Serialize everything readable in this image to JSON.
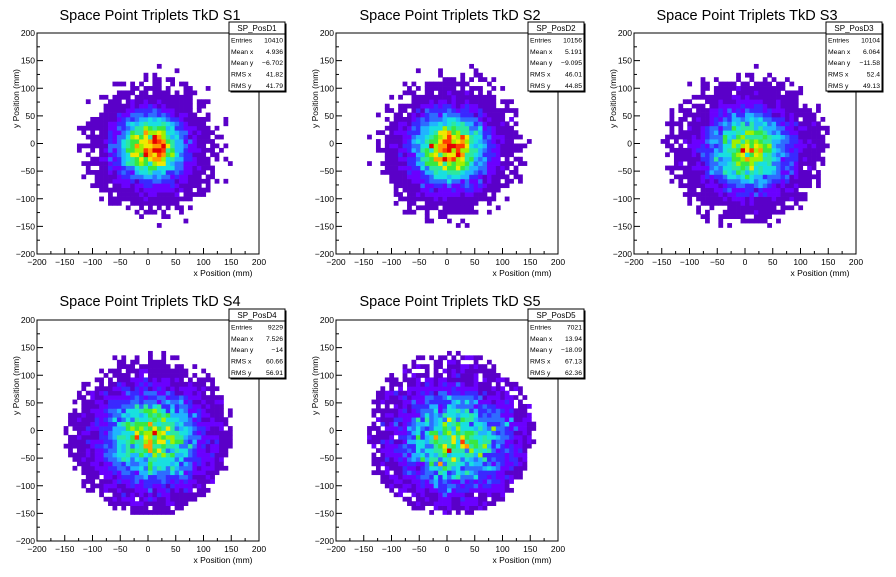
{
  "page": {
    "background": "#ffffff",
    "frame_color": "#000000"
  },
  "chart_data": [
    {
      "type": "heatmap",
      "title": "Space Point Triplets TkD S1",
      "xlabel": "x Position (mm)",
      "ylabel": "y Position (mm)",
      "xlim": [
        -200,
        200
      ],
      "ylim": [
        -200,
        200
      ],
      "xticks": [
        "−200",
        "−150",
        "−100",
        "−50",
        "0",
        "50",
        "100",
        "150",
        "200"
      ],
      "yticks": [
        "200",
        "150",
        "100",
        "50",
        "0",
        "−50",
        "−100",
        "−150",
        "−200"
      ],
      "bin_width": 8,
      "stats": {
        "name": "SP_PosD1",
        "rows": [
          {
            "label": "Entries",
            "value": "10410"
          },
          {
            "label": "Mean x",
            "value": "4.936"
          },
          {
            "label": "Mean y",
            "value": "−6.702"
          },
          {
            "label": "RMS x",
            "value": "41.82"
          },
          {
            "label": "RMS y",
            "value": "41.79"
          }
        ]
      },
      "distribution": {
        "entries": 10410,
        "mean_x": 4.936,
        "mean_y": -6.702,
        "rms_x": 41.82,
        "rms_y": 41.79,
        "radius": 150,
        "seed": 11
      }
    },
    {
      "type": "heatmap",
      "title": "Space Point Triplets TkD S2",
      "xlabel": "x Position (mm)",
      "ylabel": "y Position (mm)",
      "xlim": [
        -200,
        200
      ],
      "ylim": [
        -200,
        200
      ],
      "xticks": [
        "−200",
        "−150",
        "−100",
        "−50",
        "0",
        "50",
        "100",
        "150",
        "200"
      ],
      "yticks": [
        "200",
        "150",
        "100",
        "50",
        "0",
        "−50",
        "−100",
        "−150",
        "−200"
      ],
      "bin_width": 8,
      "stats": {
        "name": "SP_PosD2",
        "rows": [
          {
            "label": "Entries",
            "value": "10156"
          },
          {
            "label": "Mean x",
            "value": "5.191"
          },
          {
            "label": "Mean y",
            "value": "−9.095"
          },
          {
            "label": "RMS x",
            "value": "46.01"
          },
          {
            "label": "RMS y",
            "value": "44.85"
          }
        ]
      },
      "distribution": {
        "entries": 10156,
        "mean_x": 5.191,
        "mean_y": -9.095,
        "rms_x": 46.01,
        "rms_y": 44.85,
        "radius": 150,
        "seed": 23
      }
    },
    {
      "type": "heatmap",
      "title": "Space Point Triplets TkD S3",
      "xlabel": "x Position (mm)",
      "ylabel": "y Position (mm)",
      "xlim": [
        -200,
        200
      ],
      "ylim": [
        -200,
        200
      ],
      "xticks": [
        "−200",
        "−150",
        "−100",
        "−50",
        "0",
        "50",
        "100",
        "150",
        "200"
      ],
      "yticks": [
        "200",
        "150",
        "100",
        "50",
        "0",
        "−50",
        "−100",
        "−150",
        "−200"
      ],
      "bin_width": 8,
      "stats": {
        "name": "SP_PosD3",
        "rows": [
          {
            "label": "Entries",
            "value": "10104"
          },
          {
            "label": "Mean x",
            "value": "6.064"
          },
          {
            "label": "Mean y",
            "value": "−11.58"
          },
          {
            "label": "RMS x",
            "value": "52.4"
          },
          {
            "label": "RMS y",
            "value": "49.13"
          }
        ]
      },
      "distribution": {
        "entries": 10104,
        "mean_x": 6.064,
        "mean_y": -11.58,
        "rms_x": 52.4,
        "rms_y": 49.13,
        "radius": 150,
        "seed": 37
      }
    },
    {
      "type": "heatmap",
      "title": "Space Point Triplets TkD S4",
      "xlabel": "x Position (mm)",
      "ylabel": "y Position (mm)",
      "xlim": [
        -200,
        200
      ],
      "ylim": [
        -200,
        200
      ],
      "xticks": [
        "−200",
        "−150",
        "−100",
        "−50",
        "0",
        "50",
        "100",
        "150",
        "200"
      ],
      "yticks": [
        "200",
        "150",
        "100",
        "50",
        "0",
        "−50",
        "−100",
        "−150",
        "−200"
      ],
      "bin_width": 8,
      "stats": {
        "name": "SP_PosD4",
        "rows": [
          {
            "label": "Entries",
            "value": "9229"
          },
          {
            "label": "Mean x",
            "value": "7.526"
          },
          {
            "label": "Mean y",
            "value": "−14"
          },
          {
            "label": "RMS x",
            "value": "60.66"
          },
          {
            "label": "RMS y",
            "value": "56.91"
          }
        ]
      },
      "distribution": {
        "entries": 9229,
        "mean_x": 7.526,
        "mean_y": -14,
        "rms_x": 60.66,
        "rms_y": 56.91,
        "radius": 150,
        "seed": 53
      }
    },
    {
      "type": "heatmap",
      "title": "Space Point Triplets TkD S5",
      "xlabel": "x Position (mm)",
      "ylabel": "y Position (mm)",
      "xlim": [
        -200,
        200
      ],
      "ylim": [
        -200,
        200
      ],
      "xticks": [
        "−200",
        "−150",
        "−100",
        "−50",
        "0",
        "50",
        "100",
        "150",
        "200"
      ],
      "yticks": [
        "200",
        "150",
        "100",
        "50",
        "0",
        "−50",
        "−100",
        "−150",
        "−200"
      ],
      "bin_width": 8,
      "stats": {
        "name": "SP_PosD5",
        "rows": [
          {
            "label": "Entries",
            "value": "7021"
          },
          {
            "label": "Mean x",
            "value": "13.94"
          },
          {
            "label": "Mean y",
            "value": "−18.09"
          },
          {
            "label": "RMS x",
            "value": "67.13"
          },
          {
            "label": "RMS y",
            "value": "62.36"
          }
        ]
      },
      "distribution": {
        "entries": 7021,
        "mean_x": 13.94,
        "mean_y": -18.09,
        "rms_x": 67.13,
        "rms_y": 62.36,
        "radius": 150,
        "seed": 71
      }
    }
  ],
  "colormap": [
    "#5a00c8",
    "#6a00ff",
    "#3a28ff",
    "#2e6cff",
    "#20b4ff",
    "#18e0e0",
    "#2ce8a0",
    "#38e840",
    "#a0f000",
    "#f0e800",
    "#ff9a00",
    "#ff3c00",
    "#e60000"
  ]
}
